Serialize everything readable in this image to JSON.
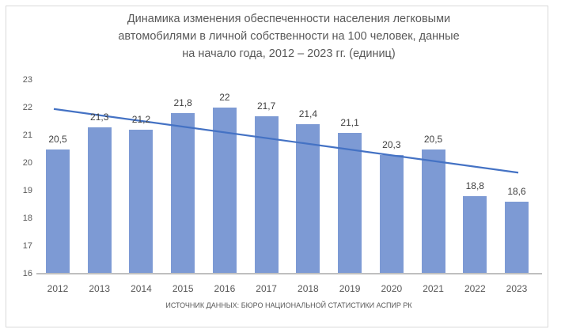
{
  "chart_data": {
    "type": "bar",
    "title": "Динамика изменения обеспеченности населения легковыми автомобилями в личной собственности на 100 человек, данные на начало года, 2012 – 2023 гг. (единиц)",
    "title_lines": [
      "Динамика изменения обеспеченности населения легковыми",
      "автомобилями в личной собственности на 100 человек, данные",
      "на начало года, 2012 – 2023 гг. (единиц)"
    ],
    "categories": [
      "2012",
      "2013",
      "2014",
      "2015",
      "2016",
      "2017",
      "2018",
      "2019",
      "2020",
      "2021",
      "2022",
      "2023"
    ],
    "values": [
      20.5,
      21.3,
      21.2,
      21.8,
      22,
      21.7,
      21.4,
      21.1,
      20.3,
      20.5,
      18.8,
      18.6
    ],
    "value_labels": [
      "20,5",
      "21,3",
      "21,2",
      "21,8",
      "22",
      "21,7",
      "21,4",
      "21,1",
      "20,3",
      "20,5",
      "18,8",
      "18,6"
    ],
    "ylabel": "",
    "xlabel": "",
    "ylim": [
      16,
      23
    ],
    "yticks": [
      23,
      22,
      21,
      20,
      19,
      18,
      17,
      16
    ],
    "grid": false,
    "legend": false,
    "trendline": {
      "start_value": 21.95,
      "end_value": 19.65
    },
    "source": "ИСТОЧНИК ДАННЫХ: БЮРО НАЦИОНАЛЬНОЙ СТАТИСТИКИ АСПИР РК",
    "colors": {
      "bar": "#7D9AD4",
      "trend": "#4472C4",
      "title_text": "#595959",
      "axis_text": "#595959",
      "data_label_text": "#404040",
      "axis_line": "#BFBFBF",
      "border": "#D9D9D9"
    }
  }
}
